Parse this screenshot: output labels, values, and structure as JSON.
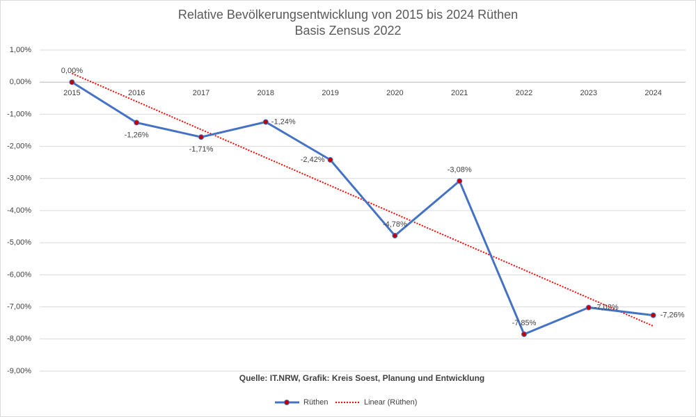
{
  "chart_data": {
    "type": "line",
    "title": "Relative Bevölkerungsentwicklung von 2015 bis 2024 Rüthen",
    "subtitle": "Basis Zensus 2022",
    "source": "Quelle: IT.NRW, Grafik: Kreis Soest, Planung und Entwicklung",
    "categories": [
      "2015",
      "2016",
      "2017",
      "2018",
      "2019",
      "2020",
      "2021",
      "2022",
      "2023",
      "2024"
    ],
    "series": [
      {
        "name": "Rüthen",
        "color": "#4472c4",
        "marker_color": "#c00000",
        "values": [
          0,
          -1.26,
          -1.71,
          -1.24,
          -2.42,
          -4.78,
          -3.08,
          -7.85,
          -7.02,
          -7.26
        ],
        "value_labels": [
          "0,00%",
          "-1,26%",
          "-1,71%",
          "-1,24%",
          "-2,42%",
          "-4,78%",
          "-3,08%",
          "-7,85%",
          "-7,02%",
          "-7,26%"
        ]
      }
    ],
    "trendline": {
      "name": "Linear (Rüthen)",
      "kind": "linear",
      "color": "#ff0000"
    },
    "ylim": [
      -9,
      1
    ],
    "yticks": [
      {
        "value": 1,
        "label": "1,00%"
      },
      {
        "value": 0,
        "label": "0,00%"
      },
      {
        "value": -1,
        "label": "-1,00%"
      },
      {
        "value": -2,
        "label": "-2,00%"
      },
      {
        "value": -3,
        "label": "-3,00%"
      },
      {
        "value": -4,
        "label": "-4,00%"
      },
      {
        "value": -5,
        "label": "-5,00%"
      },
      {
        "value": -6,
        "label": "-6,00%"
      },
      {
        "value": -7,
        "label": "-7,00%"
      },
      {
        "value": -8,
        "label": "-8,00%"
      },
      {
        "value": -9,
        "label": "-9,00%"
      }
    ],
    "grid": true
  }
}
